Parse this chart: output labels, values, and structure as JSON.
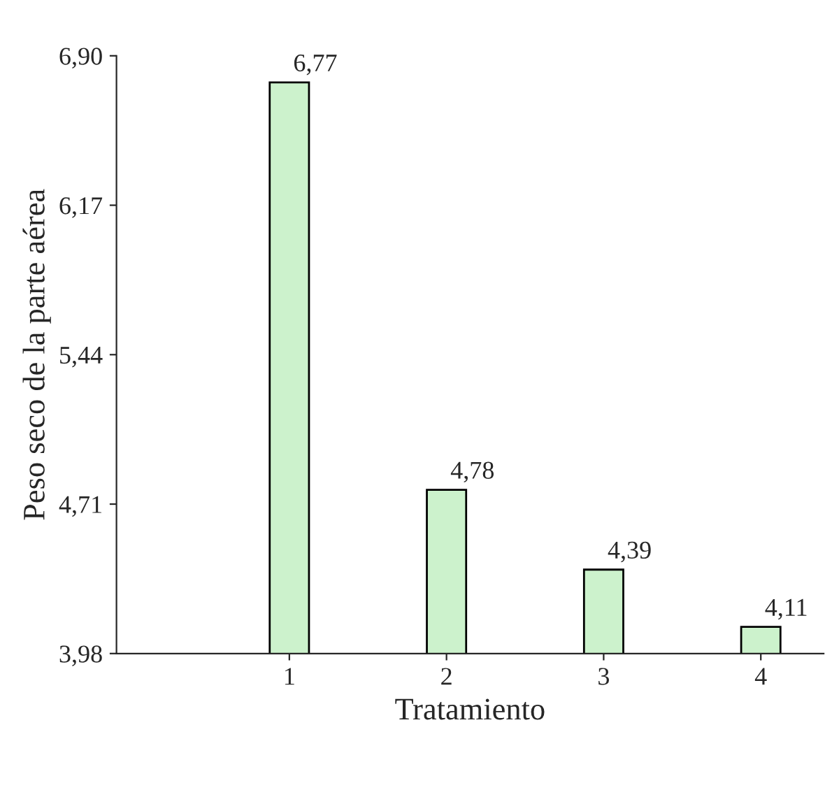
{
  "chart_data": {
    "type": "bar",
    "xlabel": "Tratamiento",
    "ylabel": "Peso seco de la parte aérea",
    "categories": [
      "1",
      "2",
      "3",
      "4"
    ],
    "series": [
      {
        "color": "#ccf2cc",
        "values": [
          6.77,
          4.78,
          4.39,
          4.11
        ],
        "value_labels": [
          "6,77",
          "4,78",
          "4,39",
          "4,11"
        ]
      }
    ],
    "ylim": [
      3.98,
      6.9
    ],
    "yticks": [
      {
        "value": 3.98,
        "label": "3,98"
      },
      {
        "value": 4.71,
        "label": "4,71"
      },
      {
        "value": 5.44,
        "label": "5,44"
      },
      {
        "value": 6.17,
        "label": "6,17"
      },
      {
        "value": 6.9,
        "label": "6,90"
      }
    ],
    "grid": false,
    "legend": false
  }
}
